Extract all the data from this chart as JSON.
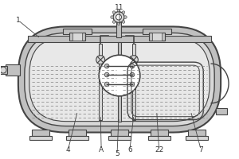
{
  "line_color": "#444444",
  "gray_dark": "#a0a0a0",
  "gray_mid": "#c0c0c0",
  "gray_light": "#d8d8d8",
  "gray_inner": "#e8e8e8",
  "water_fill": "#d0d8d8",
  "dash_color": "#888888",
  "white": "#ffffff",
  "label_color": "#333333",
  "figsize": [
    3.0,
    2.0
  ],
  "dpi": 100
}
